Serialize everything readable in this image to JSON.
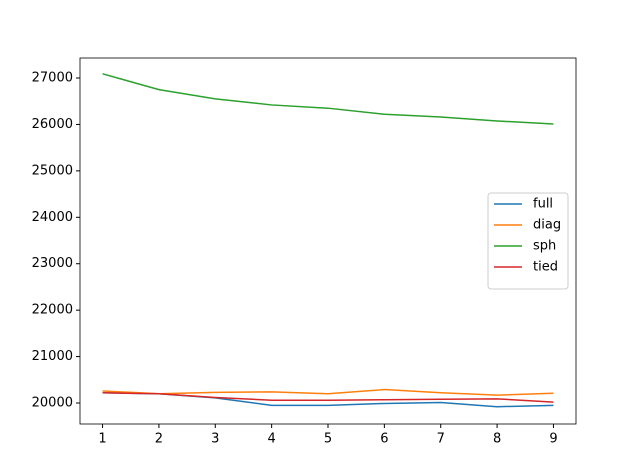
{
  "chart_data": {
    "type": "line",
    "x": [
      1,
      2,
      3,
      4,
      5,
      6,
      7,
      8,
      9
    ],
    "series": [
      {
        "name": "full",
        "color": "#1f77b4",
        "values": [
          20220,
          20200,
          20110,
          19950,
          19950,
          19990,
          20010,
          19920,
          19950
        ]
      },
      {
        "name": "diag",
        "color": "#ff7f0e",
        "values": [
          20260,
          20200,
          20230,
          20240,
          20200,
          20290,
          20220,
          20170,
          20210
        ]
      },
      {
        "name": "sph",
        "color": "#2ca02c",
        "values": [
          27090,
          26750,
          26550,
          26420,
          26350,
          26220,
          26160,
          26075,
          26010
        ]
      },
      {
        "name": "tied",
        "color": "#d62728",
        "values": [
          20220,
          20200,
          20120,
          20060,
          20060,
          20070,
          20080,
          20090,
          20020
        ]
      }
    ],
    "xlim": [
      0.6,
      9.4
    ],
    "xticks": [
      1,
      2,
      3,
      4,
      5,
      6,
      7,
      8,
      9
    ],
    "ylim": [
      19548,
      27431
    ],
    "yticks": [
      20000,
      21000,
      22000,
      23000,
      24000,
      25000,
      26000,
      27000
    ],
    "legend": "center right"
  }
}
